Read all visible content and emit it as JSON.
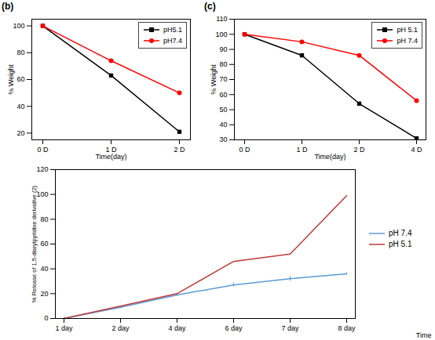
{
  "chart_data": [
    {
      "type": "line",
      "title": "(b)",
      "x_label": "Time(day)",
      "y_label": "% Weight",
      "categories": [
        "0 D",
        "1 D",
        "2 D"
      ],
      "ylim": [
        15,
        105
      ],
      "yticks": [
        20,
        40,
        60,
        80,
        100
      ],
      "legend": "upper right",
      "series": [
        {
          "name": "pH5.1",
          "color": "#000000",
          "marker": "square",
          "values": [
            100,
            63,
            21
          ]
        },
        {
          "name": "pH7.4",
          "color": "#ff0000",
          "marker": "circle",
          "values": [
            100,
            74,
            50
          ]
        }
      ]
    },
    {
      "type": "line",
      "title": "(c)",
      "x_label": "Time(day)",
      "y_label": "% Weight",
      "categories": [
        "0 D",
        "1 D",
        "2 D",
        "4 D"
      ],
      "ylim": [
        30,
        110
      ],
      "yticks": [
        30,
        40,
        50,
        60,
        70,
        80,
        90,
        100,
        110
      ],
      "legend": "upper right",
      "series": [
        {
          "name": "pH 5.1",
          "color": "#000000",
          "marker": "square",
          "values": [
            100,
            86,
            54,
            31
          ]
        },
        {
          "name": "pH 7.4",
          "color": "#ff0000",
          "marker": "circle",
          "values": [
            100,
            95,
            86,
            56
          ]
        }
      ]
    },
    {
      "type": "line",
      "x_label": "Time",
      "y_label": "% Release of 1,5-diarylpyridine derivative (2)",
      "categories": [
        "1 day",
        "2 day",
        "4 day",
        "6 day",
        "7 day",
        "8 day"
      ],
      "ylim": [
        0,
        120
      ],
      "yticks": [
        0,
        20,
        40,
        60,
        80,
        100,
        120
      ],
      "legend": "right",
      "series": [
        {
          "name": "pH 7.4",
          "color": "#5b9bd5",
          "values": [
            0,
            9,
            19,
            27,
            32,
            36
          ],
          "errors": [
            0.5,
            1,
            1,
            1.5,
            2,
            1
          ]
        },
        {
          "name": "pH 5.1",
          "color": "#be3a3a",
          "values": [
            0,
            10,
            20,
            46,
            52,
            99
          ]
        }
      ]
    }
  ]
}
